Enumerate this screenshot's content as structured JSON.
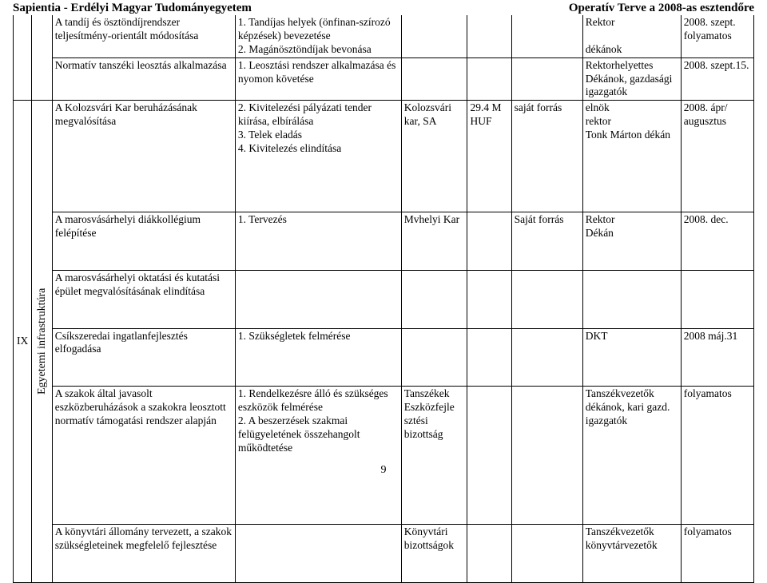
{
  "header": {
    "left": "Sapientia - Erdélyi Magyar Tudományegyetem",
    "right": "Operatív Terve a 2008-as esztendőre"
  },
  "section": {
    "num": "IX",
    "label": "Egyetemi infrastruktúra"
  },
  "rows": [
    {
      "col2": "A tandíj és ösztöndíjrendszer teljesítmény-orientált módosítása",
      "col3": "1. Tandíjas helyek (önfinan-szírozó képzések) bevezetése\n2. Magánösztöndíjak bevonása",
      "col4": "",
      "col5": "",
      "col6": "",
      "col7": "Rektor\n\ndékánok",
      "col8": "2008. szept. folyamatos"
    },
    {
      "col2": "Normatív tanszéki leosztás alkalmazása",
      "col3": "1. Leosztási rendszer alkalmazása és nyomon követése",
      "col4": "",
      "col5": "",
      "col6": "",
      "col7": "Rektorhelyettes Dékánok, gazdasági igazgatók",
      "col8": "2008. szept.15."
    },
    {
      "col2": "A Kolozsvári Kar beruházásának megvalósítása",
      "col3": "2. Kivitelezési pályázati tender kiírása, elbírálása\n3. Telek eladás\n4. Kivitelezés elindítása",
      "col4": "Kolozsvári kar, SA",
      "col5": "29.4 M HUF",
      "col6": "saját forrás",
      "col7": "elnök\nrektor\nTonk Márton dékán",
      "col8": "2008. ápr/ augusztus"
    },
    {
      "col2": "A marosvásárhelyi diákkollégium felépítése",
      "col3": "1. Tervezés",
      "col4": "Mvhelyi Kar",
      "col5": "",
      "col6": "Saját forrás",
      "col7": "Rektor\nDékán",
      "col8": "2008. dec."
    },
    {
      "col2": "A marosvásárhelyi oktatási és kutatási épület megvalósításának elindítása",
      "col3": "",
      "col4": "",
      "col5": "",
      "col6": "",
      "col7": "",
      "col8": ""
    },
    {
      "col2": "Csíkszeredai ingatlanfejlesztés elfogadása",
      "col3": "1. Szükségletek felmérése",
      "col4": "",
      "col5": "",
      "col6": "",
      "col7": "DKT",
      "col8": "2008 máj.31"
    },
    {
      "col2": "A szakok által javasolt eszközberuházások a szakokra leosztott normatív támogatási rendszer alapján",
      "col3": "1. Rendelkezésre álló és szükséges eszközök felmérése\n2. A beszerzések szakmai felügyeletének összehangolt működtetése",
      "col4": "Tanszékek Eszközfejle sztési bizottság",
      "col5": "",
      "col6": "",
      "col7": "Tanszékvezetők dékánok, kari gazd. igazgatók",
      "col8": "folyamatos"
    },
    {
      "col2": "A könyvtári állomány tervezett, a szakok szükségleteinek megfelelő fejlesztése",
      "col3": "",
      "col4": "Könyvtári bizottságok",
      "col5": "",
      "col6": "",
      "col7": "Tanszékvezetők könyvtárvezetők",
      "col8": "folyamatos"
    }
  ],
  "pagenum": "9"
}
